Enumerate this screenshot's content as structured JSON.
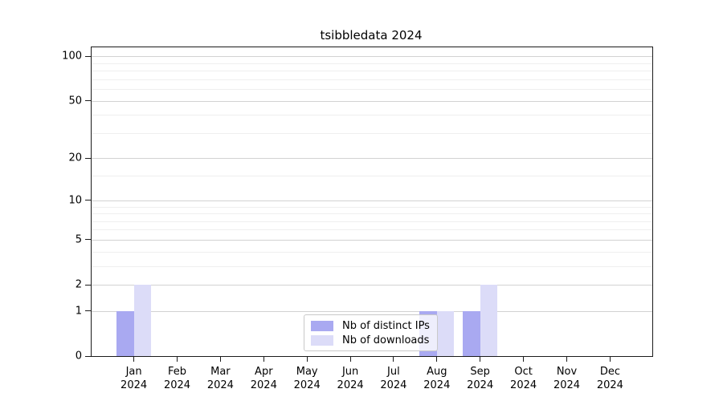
{
  "chart_data": {
    "type": "bar",
    "title": "tsibbledata 2024",
    "months": [
      "Jan",
      "Feb",
      "Mar",
      "Apr",
      "May",
      "Jun",
      "Jul",
      "Aug",
      "Sep",
      "Oct",
      "Nov",
      "Dec"
    ],
    "year": "2024",
    "series": [
      {
        "name": "Nb of distinct IPs",
        "color": "#a9a9f1",
        "values": [
          1,
          0,
          0,
          0,
          0,
          0,
          0,
          1,
          1,
          0,
          0,
          0
        ]
      },
      {
        "name": "Nb of downloads",
        "color": "#dcdcf8",
        "values": [
          2,
          0,
          0,
          0,
          0,
          0,
          0,
          1,
          2,
          0,
          0,
          0
        ]
      }
    ],
    "yscale": "log1p",
    "ylim": [
      0,
      115
    ],
    "yticks_major": [
      0,
      1,
      2,
      5,
      10,
      20,
      50,
      100
    ],
    "yticks_minor": [
      3,
      4,
      6,
      7,
      8,
      9,
      15,
      30,
      40,
      60,
      70,
      80,
      90
    ],
    "xlim": [
      -0.977,
      11.977
    ],
    "bar_width": 0.4,
    "grid": "horizontal-major-and-minor",
    "legend_position": "inside-bottom-center"
  }
}
